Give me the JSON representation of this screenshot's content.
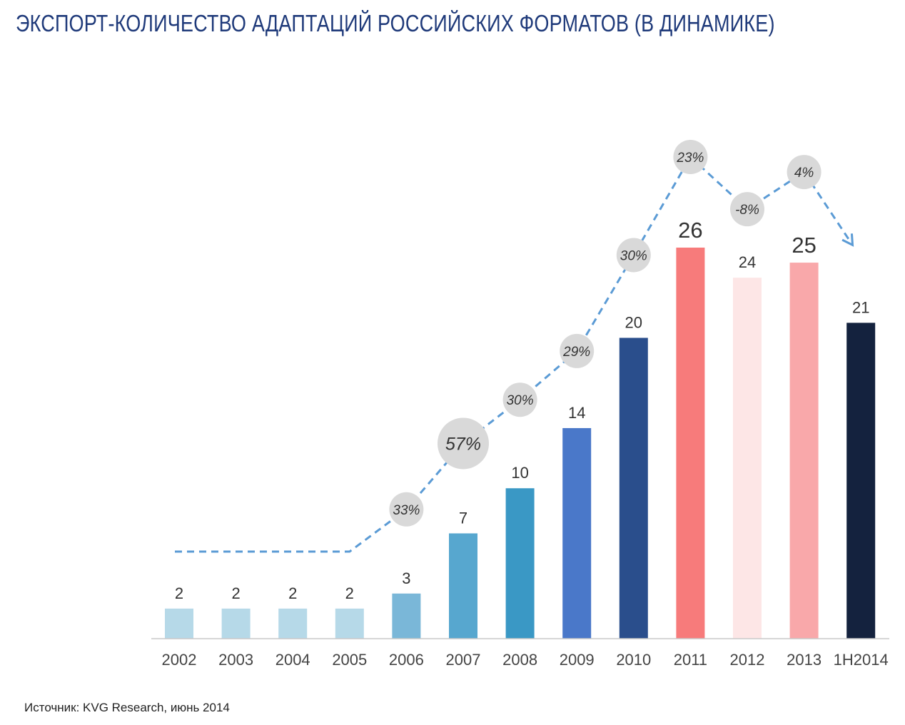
{
  "title": "ЭКСПОРТ-КОЛИЧЕСТВО АДАПТАЦИЙ РОССИЙСКИХ ФОРМАТОВ (В ДИНАМИКЕ)",
  "source": "Источник: KVG Research, июнь 2014",
  "chart_data": {
    "type": "bar",
    "categories": [
      "2002",
      "2003",
      "2004",
      "2005",
      "2006",
      "2007",
      "2008",
      "2009",
      "2010",
      "2011",
      "2012",
      "2013",
      "1H2014"
    ],
    "values": [
      2,
      2,
      2,
      2,
      3,
      7,
      10,
      14,
      20,
      26,
      24,
      25,
      21
    ],
    "value_labels": [
      "2",
      "2",
      "2",
      "2",
      "3",
      "7",
      "10",
      "14",
      "20",
      "26",
      "24",
      "25",
      "21"
    ],
    "bar_colors": [
      "#b6d9e8",
      "#b6d9e8",
      "#b6d9e8",
      "#b6d9e8",
      "#7ab7d8",
      "#57a7cf",
      "#3a98c5",
      "#4a78c9",
      "#2a4e8c",
      "#f77b7b",
      "#fde6e6",
      "#f9a8aa",
      "#14223e"
    ],
    "growth_line": {
      "style": "dashed",
      "color": "#5b9bd5",
      "labels": [
        "",
        "",
        "",
        "",
        "33%",
        "57%",
        "30%",
        "29%",
        "30%",
        "23%",
        "-8%",
        "4%",
        ""
      ],
      "marker_color": "#d9d9d9",
      "ends_with_arrow": true
    },
    "ylim": [
      0,
      26
    ],
    "xlabel": "",
    "ylabel": "",
    "grid": false,
    "legend": "none"
  }
}
